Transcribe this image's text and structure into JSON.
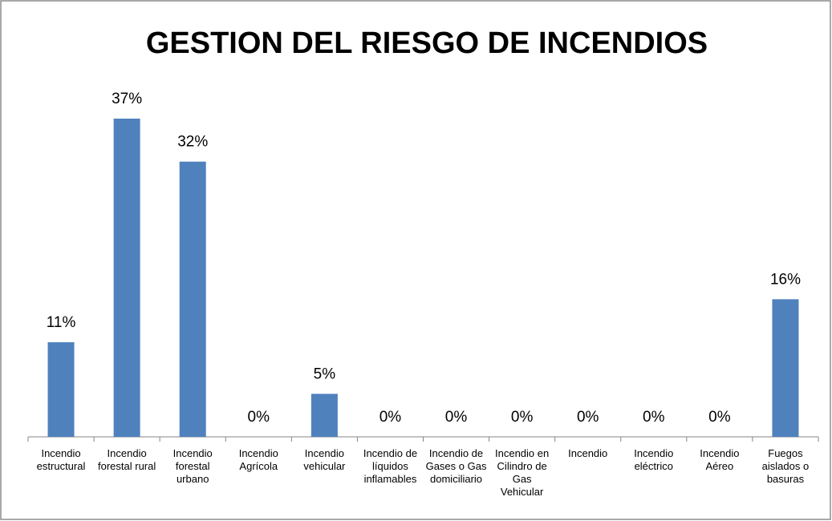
{
  "chart_data": {
    "type": "bar",
    "title": "GESTION DEL RIESGO DE INCENDIOS",
    "categories": [
      "Incendio estructural",
      "Incendio forestal rural",
      "Incendio forestal urbano",
      "Incendio Agrícola",
      "Incendio vehicular",
      "Incendio de líquidos inflamables",
      "Incendio de Gases o Gas domiciliario",
      "Incendio en Cilindro de Gas Vehicular",
      "Incendio",
      "Incendio eléctrico",
      "Incendio Aéreo",
      "Fuegos aislados o basuras"
    ],
    "values": [
      11,
      37,
      32,
      0,
      5,
      0,
      0,
      0,
      0,
      0,
      0,
      16
    ],
    "value_labels": [
      "11%",
      "37%",
      "32%",
      "0%",
      "5%",
      "0%",
      "0%",
      "0%",
      "0%",
      "0%",
      "0%",
      "16%"
    ],
    "color": "#4f81bd"
  }
}
